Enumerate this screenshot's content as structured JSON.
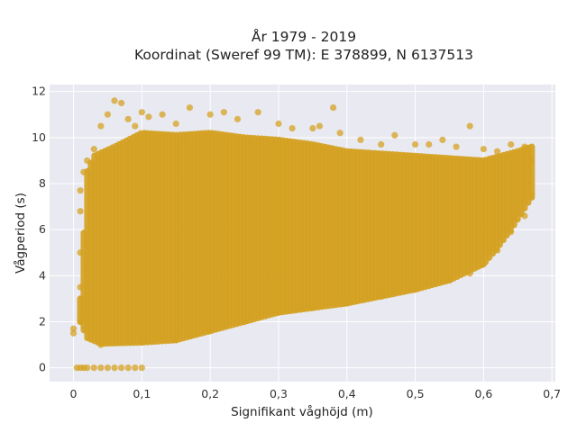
{
  "chart_data": {
    "type": "scatter",
    "title": "År 1979 - 2019",
    "subtitle": "Koordinat (Sweref 99 TM): E 378899, N 6137513",
    "xlabel": "Signifikant våghöjd (m)",
    "ylabel": "Vågperiod (s)",
    "xlim": [
      -0.035,
      0.705
    ],
    "ylim": [
      -0.6,
      12.3
    ],
    "x_ticks": [
      0,
      0.1,
      0.2,
      0.3,
      0.4,
      0.5,
      0.6,
      0.7
    ],
    "x_tick_labels": [
      "0",
      "0,1",
      "0,2",
      "0,3",
      "0,4",
      "0,5",
      "0,6",
      "0,7"
    ],
    "y_ticks": [
      0,
      2,
      4,
      6,
      8,
      10,
      12
    ],
    "y_tick_labels": [
      "0",
      "2",
      "4",
      "6",
      "8",
      "10",
      "12"
    ],
    "grid": true,
    "marker_color": "#D4A121",
    "plot_background": "#E9E9F1",
    "series": [
      {
        "points": [
          [
            0.0,
            1.5
          ],
          [
            0.0,
            1.7
          ],
          [
            0.005,
            0.0
          ],
          [
            0.01,
            0.0
          ],
          [
            0.015,
            0.0
          ],
          [
            0.02,
            0.0
          ],
          [
            0.03,
            0.0
          ],
          [
            0.04,
            0.0
          ],
          [
            0.05,
            0.0
          ],
          [
            0.06,
            0.0
          ],
          [
            0.07,
            0.0
          ],
          [
            0.08,
            0.0
          ],
          [
            0.09,
            0.0
          ],
          [
            0.1,
            0.0
          ],
          [
            0.01,
            2.0
          ],
          [
            0.01,
            3.5
          ],
          [
            0.01,
            5.0
          ],
          [
            0.01,
            6.8
          ],
          [
            0.01,
            7.7
          ],
          [
            0.015,
            8.5
          ],
          [
            0.02,
            9.0
          ],
          [
            0.03,
            9.5
          ],
          [
            0.04,
            10.5
          ],
          [
            0.05,
            11.0
          ],
          [
            0.06,
            11.6
          ],
          [
            0.07,
            11.5
          ],
          [
            0.08,
            10.8
          ],
          [
            0.09,
            10.5
          ],
          [
            0.1,
            11.1
          ],
          [
            0.11,
            10.9
          ],
          [
            0.13,
            11.0
          ],
          [
            0.15,
            10.6
          ],
          [
            0.17,
            11.3
          ],
          [
            0.2,
            11.0
          ],
          [
            0.22,
            11.1
          ],
          [
            0.24,
            10.8
          ],
          [
            0.27,
            11.1
          ],
          [
            0.3,
            10.6
          ],
          [
            0.32,
            10.4
          ],
          [
            0.35,
            10.4
          ],
          [
            0.36,
            10.5
          ],
          [
            0.38,
            11.3
          ],
          [
            0.39,
            10.2
          ],
          [
            0.42,
            9.9
          ],
          [
            0.45,
            9.7
          ],
          [
            0.47,
            10.1
          ],
          [
            0.5,
            9.7
          ],
          [
            0.52,
            9.7
          ],
          [
            0.54,
            9.9
          ],
          [
            0.56,
            9.6
          ],
          [
            0.58,
            10.5
          ],
          [
            0.6,
            9.5
          ],
          [
            0.62,
            9.4
          ],
          [
            0.64,
            9.7
          ],
          [
            0.66,
            9.6
          ],
          [
            0.67,
            9.0
          ],
          [
            0.04,
            1.0
          ],
          [
            0.1,
            1.1
          ],
          [
            0.15,
            1.2
          ],
          [
            0.2,
            1.6
          ],
          [
            0.25,
            2.0
          ],
          [
            0.3,
            2.4
          ],
          [
            0.35,
            2.6
          ],
          [
            0.4,
            2.8
          ],
          [
            0.45,
            3.1
          ],
          [
            0.5,
            3.4
          ],
          [
            0.55,
            3.8
          ],
          [
            0.58,
            4.1
          ],
          [
            0.6,
            4.5
          ],
          [
            0.62,
            5.1
          ],
          [
            0.64,
            5.9
          ],
          [
            0.66,
            6.6
          ],
          [
            0.67,
            7.5
          ]
        ]
      }
    ]
  }
}
